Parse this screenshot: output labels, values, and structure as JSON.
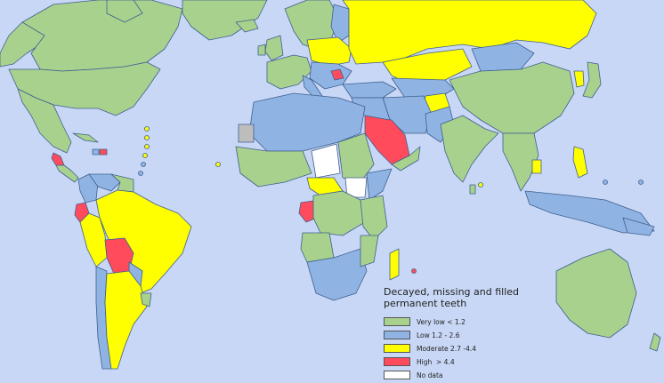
{
  "colors": {
    "ocean": "#c8d7f5",
    "very_low": "#a9d18e",
    "low": "#8fb4e3",
    "moderate": "#ffff00",
    "high": "#ff4b5c",
    "no_data": "#ffffff",
    "border": "#3e5f8f",
    "grey_territory": "#bdbdbd"
  },
  "legend": {
    "title": "Decayed, missing and filled\npermanent teeth",
    "items": [
      {
        "label": "Very low < 1.2",
        "color": "#a9d18e"
      },
      {
        "label": "Low 1.2 - 2.6",
        "color": "#8fb4e3"
      },
      {
        "label": "Moderate 2.7 -4.4",
        "color": "#ffff00"
      },
      {
        "label": "High  > 4.4",
        "color": "#ff4b5c"
      },
      {
        "label": "No data",
        "color": "#ffffff"
      }
    ]
  }
}
